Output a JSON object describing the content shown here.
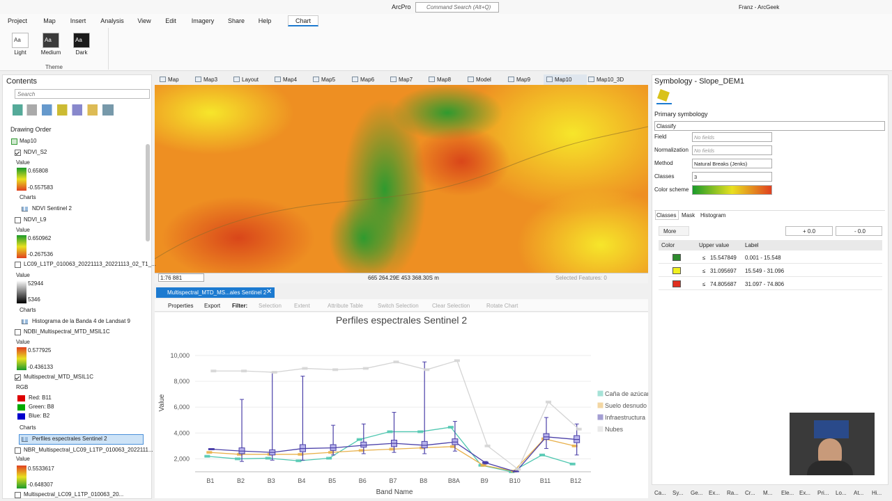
{
  "app": {
    "title": "ArcPro",
    "search": "Command Search (Alt+Q)",
    "user": "Franz - ArcGeek"
  },
  "ribbon": {
    "tabs": [
      "Project",
      "Map",
      "Insert",
      "Analysis",
      "View",
      "Edit",
      "Imagery",
      "Share",
      "Help",
      "Chart"
    ],
    "theme_icon": "Aa",
    "themes": [
      "Light",
      "Medium",
      "Dark"
    ],
    "group": "Theme"
  },
  "contents": {
    "title": "Contents",
    "search": "Search",
    "drawing_order": "Drawing Order",
    "items": [
      "Map10",
      "NDVI_S2",
      "Value",
      "0.65808",
      "-0.557583",
      "Charts",
      "NDVI Sentinel 2",
      "NDVI_L9",
      "Value",
      "0.650962",
      "-0.267536",
      "LC09_L1TP_010063_20221113_20221113_02_T1_...",
      "Value",
      "52944",
      "5346",
      "Charts",
      "Histograma de la Banda 4 de Landsat 9",
      "NDBI_Multispectral_MTD_MSIL1C",
      "Value",
      "0.577925",
      "-0.436133",
      "Multispectral_MTD_MSIL1C",
      "RGB",
      "Red:   B11",
      "Green: B8",
      "Blue:   B2",
      "Charts",
      "Perfiles espectrales Sentinel 2",
      "NBR_Multispectral_LC09_L1TP_010063_2022111...",
      "Value",
      "0.5533617",
      "-0.648307",
      "Multispectral_LC09_L1TP_010063_20..."
    ]
  },
  "map_tabs": [
    "Map",
    "Map3",
    "Layout",
    "Map4",
    "Map5",
    "Map6",
    "Map7",
    "Map8",
    "Model",
    "Map9",
    "Map10",
    "Map10_3D"
  ],
  "status": {
    "scale": "1:76 881",
    "coordinates": "665 264.29E 453 368.30S m",
    "selected": "Selected Features: 0"
  },
  "chart_view": {
    "tab": "Multispectral_MTD_MS...ales Sentinel 2",
    "toolbar": [
      "Properties",
      "Export",
      "Filter:",
      "Selection",
      "Extent",
      "Attribute Table",
      "Switch Selection",
      "Clear Selection",
      "Rotate Chart"
    ]
  },
  "chart_data": {
    "type": "box",
    "title": "Perfiles espectrales Sentinel 2",
    "x_label": "Band Name",
    "y_label": "Value",
    "categories": [
      "B1",
      "B2",
      "B3",
      "B4",
      "B5",
      "B6",
      "B7",
      "B8",
      "B8A",
      "B9",
      "B10",
      "B11",
      "B12"
    ],
    "ylim": [
      1000,
      11500
    ],
    "yticks": [
      {
        "value": 2000,
        "label": "2,000"
      },
      {
        "value": 4000,
        "label": "4,000"
      },
      {
        "value": 6000,
        "label": "6,000"
      },
      {
        "value": 8000,
        "label": "8,000"
      },
      {
        "value": 10000,
        "label": "10,000"
      }
    ],
    "grid": true,
    "legend": "right",
    "series": [
      {
        "name": "Caña de azúcar",
        "color": "#4fc7b0",
        "values": [
          2200,
          2000,
          2050,
          1850,
          2050,
          3500,
          4100,
          4100,
          4450,
          1500,
          1000,
          2300,
          1600
        ]
      },
      {
        "name": "Suelo desnudo",
        "color": "#e8b04a",
        "values": [
          2500,
          2350,
          2350,
          2350,
          2500,
          2650,
          2750,
          2850,
          2950,
          1500,
          1050,
          3550,
          3000
        ]
      },
      {
        "name": "Infraestructura",
        "color": "#4a3fa8",
        "values": [
          2750,
          2600,
          2500,
          2800,
          2850,
          3050,
          3200,
          3050,
          3300,
          1700,
          1000,
          3700,
          3500
        ],
        "min": [
          2700,
          1800,
          1900,
          1900,
          2300,
          2400,
          2500,
          2400,
          2600,
          1600,
          1000,
          2800,
          2300
        ],
        "q1": [
          2700,
          2400,
          2300,
          2550,
          2650,
          2900,
          2950,
          2850,
          3100,
          1650,
          1000,
          3500,
          3250
        ],
        "q3": [
          2800,
          2850,
          2700,
          3100,
          3100,
          3300,
          3450,
          3350,
          3550,
          1750,
          1050,
          3950,
          3800
        ],
        "max": [
          2800,
          6600,
          8700,
          8400,
          4600,
          4700,
          5600,
          9500,
          4900,
          1800,
          1100,
          5200,
          4700
        ]
      },
      {
        "name": "Nubes",
        "color": "#d4d4d4",
        "values": [
          8800,
          8800,
          8700,
          9000,
          8900,
          9000,
          9500,
          8900,
          9600,
          3000,
          1200,
          6400,
          4300
        ]
      }
    ]
  },
  "symbology": {
    "title": "Symbology - Slope_DEM1",
    "primary": "Primary symbology",
    "renderer": "Classify",
    "fields": [
      [
        "Field",
        "No fields"
      ],
      [
        "Normalization",
        "No fields"
      ],
      [
        "Method",
        "Natural Breaks (Jenks)"
      ],
      [
        "Classes",
        "3"
      ],
      [
        "Color scheme",
        ""
      ]
    ],
    "tabs": [
      "Classes",
      "Mask",
      "Histogram"
    ],
    "more": "More",
    "plus": "+ 0.0",
    "minus": "- 0.0",
    "headers": [
      "Color",
      "Upper value",
      "Label"
    ],
    "rows": [
      {
        "color": "#2e8b2e",
        "op": "≤",
        "upper": "15.547849",
        "label": "0.001 - 15.548"
      },
      {
        "color": "#f0f020",
        "op": "≤",
        "upper": "31.095697",
        "label": "15.549 - 31.096"
      },
      {
        "color": "#e03020",
        "op": "≤",
        "upper": "74.805687",
        "label": "31.097 - 74.806"
      }
    ]
  },
  "bottom_tabs": [
    "Ca...",
    "Sy...",
    "Ge...",
    "Ex...",
    "Ra...",
    "Cr...",
    "M...",
    "Ele...",
    "Ex...",
    "Pri...",
    "Lo...",
    "At...",
    "Hi..."
  ]
}
